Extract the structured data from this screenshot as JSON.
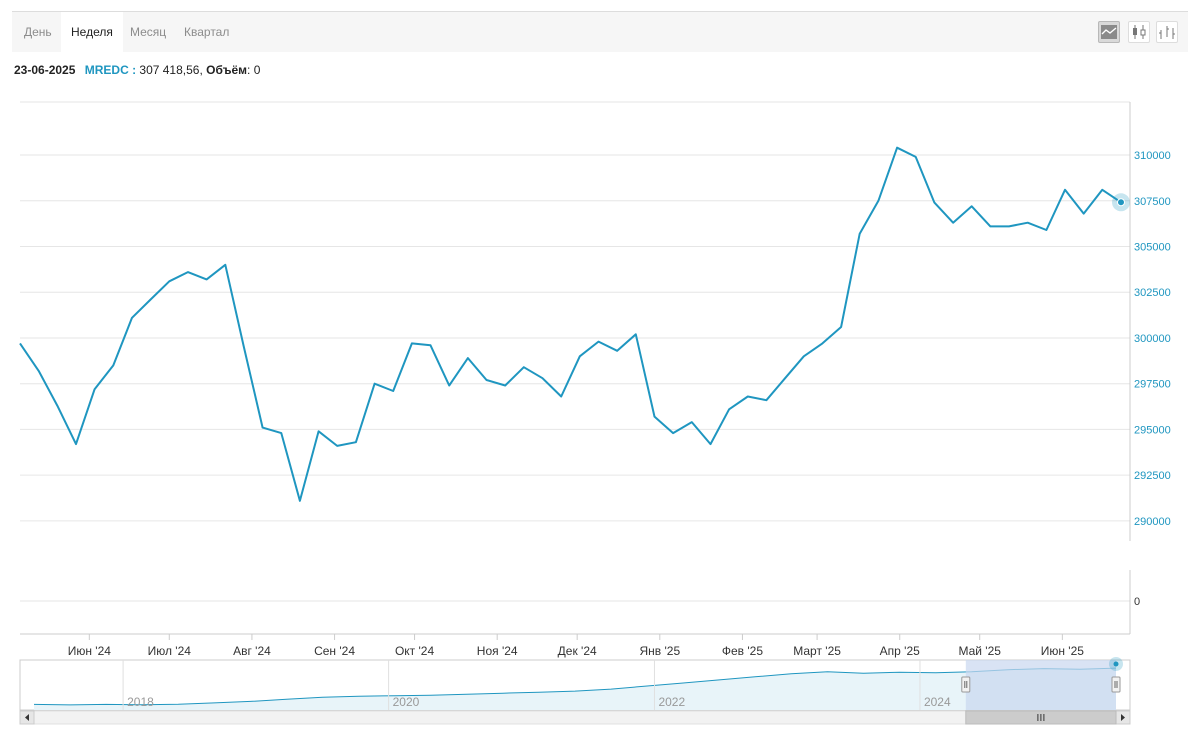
{
  "toolbar": {
    "tabs": [
      {
        "label": "День",
        "active": false
      },
      {
        "label": "Неделя",
        "active": true
      },
      {
        "label": "Месяц",
        "active": false
      },
      {
        "label": "Квартал",
        "active": false
      }
    ],
    "chart_type_buttons": [
      "line-chart-icon",
      "candlestick-icon",
      "ohlc-icon"
    ]
  },
  "info": {
    "date": "23-06-2025",
    "series_name": "MREDC",
    "separator": " : ",
    "value": "307 418,56,",
    "volume_label": "Объём",
    "volume_value": ": 0"
  },
  "colors": {
    "line": "#1f96c0",
    "grid": "#e6e6e6",
    "navigator_fill": "#e8f4f9",
    "navigator_selection": "#c9d7ef"
  },
  "chart_data": {
    "type": "line",
    "series": [
      {
        "name": "MREDC",
        "x": [
          "2024-05-06",
          "2024-05-13",
          "2024-05-20",
          "2024-05-27",
          "2024-06-03",
          "2024-06-10",
          "2024-06-17",
          "2024-06-24",
          "2024-07-01",
          "2024-07-08",
          "2024-07-15",
          "2024-07-22",
          "2024-07-29",
          "2024-08-05",
          "2024-08-12",
          "2024-08-19",
          "2024-08-26",
          "2024-09-02",
          "2024-09-09",
          "2024-09-16",
          "2024-09-23",
          "2024-09-30",
          "2024-10-07",
          "2024-10-14",
          "2024-10-21",
          "2024-10-28",
          "2024-11-04",
          "2024-11-11",
          "2024-11-18",
          "2024-11-25",
          "2024-12-02",
          "2024-12-09",
          "2024-12-16",
          "2024-12-23",
          "2024-12-30",
          "2025-01-06",
          "2025-01-13",
          "2025-01-20",
          "2025-01-27",
          "2025-02-03",
          "2025-02-10",
          "2025-02-17",
          "2025-02-24",
          "2025-03-03",
          "2025-03-10",
          "2025-03-17",
          "2025-03-24",
          "2025-03-31",
          "2025-04-07",
          "2025-04-14",
          "2025-04-21",
          "2025-04-28",
          "2025-05-05",
          "2025-05-12",
          "2025-05-19",
          "2025-05-26",
          "2025-06-02",
          "2025-06-09",
          "2025-06-16",
          "2025-06-23"
        ],
        "values": [
          299700,
          298200,
          296300,
          294200,
          297200,
          298500,
          301100,
          302100,
          303100,
          303600,
          303200,
          304000,
          299500,
          295100,
          294800,
          291100,
          294900,
          294100,
          294300,
          297500,
          297100,
          299700,
          299600,
          297400,
          298900,
          297700,
          297400,
          298400,
          297800,
          296800,
          299000,
          299800,
          299300,
          300200,
          295700,
          294800,
          295400,
          294200,
          296100,
          296800,
          296600,
          297800,
          299000,
          299700,
          300600,
          305700,
          307500,
          310400,
          309900,
          307400,
          306300,
          307200,
          306100,
          306100,
          306300,
          305900,
          308100,
          306800,
          308100,
          307418.56
        ]
      }
    ],
    "volume": {
      "ticks": [
        "0"
      ]
    },
    "x_tick_labels": [
      "Июн '24",
      "Июл '24",
      "Авг '24",
      "Сен '24",
      "Окт '24",
      "Ноя '24",
      "Дек '24",
      "Янв '25",
      "Фев '25",
      "Март '25",
      "Апр '25",
      "Май '25",
      "Июн '25"
    ],
    "y_ticks": [
      290000,
      292500,
      295000,
      297500,
      300000,
      302500,
      305000,
      307500,
      310000
    ],
    "y_tick_labels": [
      "290000",
      "292500",
      "295000",
      "297500",
      "300000",
      "302500",
      "305000",
      "307500",
      "310000"
    ],
    "ylim": [
      288900,
      312900
    ],
    "navigator": {
      "x_tick_labels": [
        "2018",
        "2020",
        "2022",
        "2024"
      ],
      "selection": [
        "2024-05-06",
        "2025-06-23"
      ],
      "overview_values": [
        232000,
        231000,
        232000,
        231500,
        232500,
        235000,
        238000,
        242000,
        246000,
        248000,
        249000,
        250000,
        252000,
        254000,
        256000,
        258000,
        262000,
        268000,
        274000,
        280000,
        286000,
        292000,
        296000,
        293000,
        295000,
        294000,
        296000,
        300000,
        302000,
        301000,
        303000
      ]
    },
    "title": "",
    "xlabel": "",
    "ylabel": "",
    "grid": true,
    "legend": "none"
  }
}
